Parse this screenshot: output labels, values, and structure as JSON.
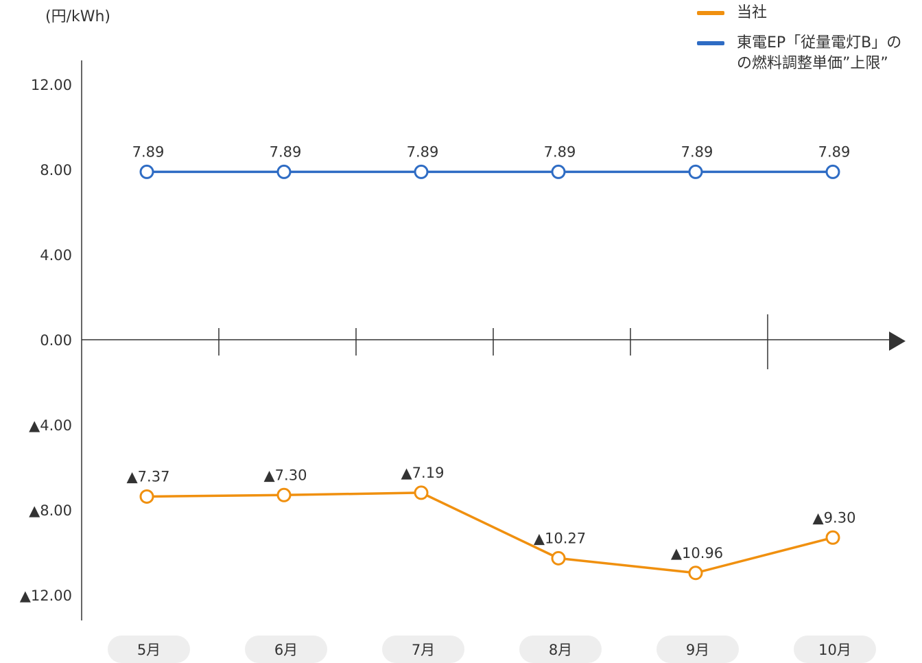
{
  "unit_label": "(円/kWh)",
  "legend": [
    {
      "label": "当社",
      "color": "#F0900F"
    },
    {
      "label": "東電EP「従量電灯B」の\nの燃料調整単価”上限”",
      "color": "#2E6CC4"
    }
  ],
  "chart_data": {
    "type": "line",
    "categories": [
      "5月",
      "6月",
      "7月",
      "8月",
      "9月",
      "10月"
    ],
    "ylim": [
      -12.0,
      12.0
    ],
    "yticks": [
      12.0,
      8.0,
      4.0,
      0.0,
      -4.0,
      -8.0,
      -12.0
    ],
    "ytick_labels": [
      "12.00",
      "8.00",
      "4.00",
      "0.00",
      "▲4.00",
      "▲8.00",
      "▲12.00"
    ],
    "series": [
      {
        "name": "東電EP「従量電灯B」のの燃料調整単価”上限”",
        "color": "#2E6CC4",
        "values": [
          7.89,
          7.89,
          7.89,
          7.89,
          7.89,
          7.89
        ],
        "labels": [
          "7.89",
          "7.89",
          "7.89",
          "7.89",
          "7.89",
          "7.89"
        ]
      },
      {
        "name": "当社",
        "color": "#F0900F",
        "values": [
          -7.37,
          -7.3,
          -7.19,
          -10.27,
          -10.96,
          -9.3
        ],
        "labels": [
          "▲7.37",
          "▲7.30",
          "▲7.19",
          "▲10.27",
          "▲10.96",
          "▲9.30"
        ]
      }
    ]
  }
}
